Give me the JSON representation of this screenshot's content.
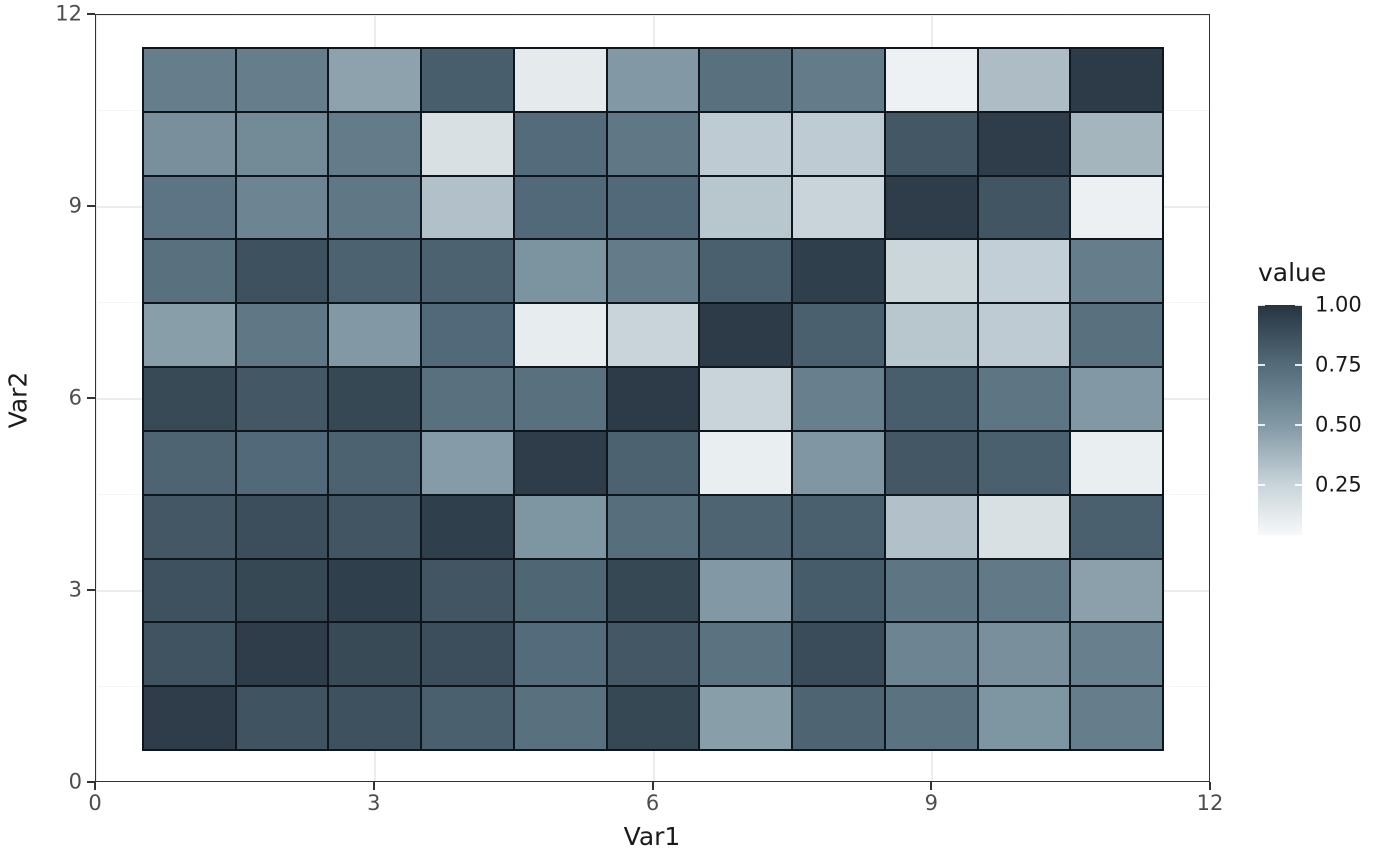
{
  "chart_data": {
    "type": "heatmap",
    "title": "",
    "x_label": "Var1",
    "y_label": "Var2",
    "x_range": [
      0,
      12
    ],
    "y_range": [
      0,
      12
    ],
    "x_ticks": [
      0,
      3,
      6,
      9,
      12
    ],
    "y_ticks": [
      0,
      3,
      6,
      9,
      12
    ],
    "x_tick_labels": [
      "0",
      "3",
      "6",
      "9",
      "12"
    ],
    "y_tick_labels": [
      "0",
      "3",
      "6",
      "9",
      "12"
    ],
    "minor_ticks": [
      1.5,
      4.5,
      7.5,
      10.5
    ],
    "grid": "on",
    "x_categories": [
      1,
      2,
      3,
      4,
      5,
      6,
      7,
      8,
      9,
      10,
      11
    ],
    "y_categories": [
      1,
      2,
      3,
      4,
      5,
      6,
      7,
      8,
      9,
      10,
      11
    ],
    "cell_extent": [
      0.5,
      11.5
    ],
    "tile_border_color": "#0e151c",
    "gradient_stops": [
      {
        "v": 0.0,
        "color": "#ffffff"
      },
      {
        "v": 0.25,
        "color": "#c9d4da"
      },
      {
        "v": 0.5,
        "color": "#8299a5"
      },
      {
        "v": 0.75,
        "color": "#536b7a"
      },
      {
        "v": 1.0,
        "color": "#273440"
      }
    ],
    "legend": {
      "title": "value",
      "position": "right",
      "tick_values": [
        1.0,
        0.75,
        0.5,
        0.25
      ],
      "tick_labels": [
        "1.00",
        "0.75",
        "0.50",
        "0.25"
      ],
      "bar_max": 1.0,
      "bar_min": 0.042
    },
    "rows": [
      {
        "var2": 11,
        "values": [
          0.65,
          0.65,
          0.46,
          0.81,
          0.12,
          0.5,
          0.72,
          0.66,
          0.08,
          0.35,
          0.97
        ]
      },
      {
        "var2": 10,
        "values": [
          0.55,
          0.58,
          0.66,
          0.18,
          0.75,
          0.68,
          0.29,
          0.29,
          0.84,
          0.96,
          0.38
        ]
      },
      {
        "var2": 9,
        "values": [
          0.7,
          0.61,
          0.68,
          0.33,
          0.76,
          0.76,
          0.31,
          0.25,
          0.96,
          0.85,
          0.09
        ]
      },
      {
        "var2": 8,
        "values": [
          0.72,
          0.87,
          0.79,
          0.79,
          0.53,
          0.66,
          0.8,
          0.95,
          0.24,
          0.27,
          0.65
        ]
      },
      {
        "var2": 7,
        "values": [
          0.48,
          0.68,
          0.5,
          0.76,
          0.11,
          0.25,
          0.97,
          0.8,
          0.31,
          0.29,
          0.72
        ]
      },
      {
        "var2": 6,
        "values": [
          0.9,
          0.84,
          0.91,
          0.72,
          0.72,
          0.97,
          0.25,
          0.64,
          0.81,
          0.69,
          0.5
        ]
      },
      {
        "var2": 5,
        "values": [
          0.78,
          0.76,
          0.79,
          0.49,
          0.96,
          0.79,
          0.1,
          0.51,
          0.84,
          0.8,
          0.1
        ]
      },
      {
        "var2": 4,
        "values": [
          0.84,
          0.88,
          0.85,
          0.95,
          0.52,
          0.73,
          0.78,
          0.8,
          0.33,
          0.18,
          0.8
        ]
      },
      {
        "var2": 3,
        "values": [
          0.87,
          0.91,
          0.95,
          0.85,
          0.77,
          0.91,
          0.5,
          0.82,
          0.69,
          0.67,
          0.47
        ]
      },
      {
        "var2": 2,
        "values": [
          0.86,
          0.96,
          0.9,
          0.88,
          0.75,
          0.84,
          0.71,
          0.89,
          0.61,
          0.55,
          0.64
        ]
      },
      {
        "var2": 1,
        "values": [
          0.96,
          0.86,
          0.87,
          0.8,
          0.72,
          0.91,
          0.48,
          0.78,
          0.71,
          0.52,
          0.65
        ]
      }
    ]
  }
}
